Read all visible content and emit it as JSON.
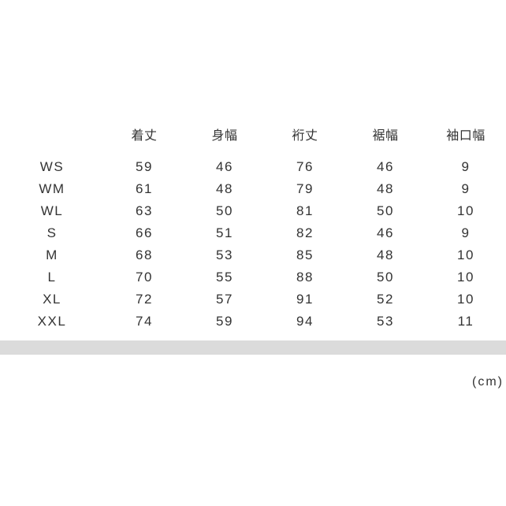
{
  "size_chart": {
    "unit_label": "(cm)",
    "columns": [
      "着丈",
      "身幅",
      "裄丈",
      "裾幅",
      "袖口幅"
    ],
    "rows": [
      {
        "size": "WS",
        "values": [
          "59",
          "46",
          "76",
          "46",
          "9"
        ]
      },
      {
        "size": "WM",
        "values": [
          "61",
          "48",
          "79",
          "48",
          "9"
        ]
      },
      {
        "size": "WL",
        "values": [
          "63",
          "50",
          "81",
          "50",
          "10"
        ]
      },
      {
        "size": "S",
        "values": [
          "66",
          "51",
          "82",
          "46",
          "9"
        ]
      },
      {
        "size": "M",
        "values": [
          "68",
          "53",
          "85",
          "48",
          "10"
        ]
      },
      {
        "size": "L",
        "values": [
          "70",
          "55",
          "88",
          "50",
          "10"
        ]
      },
      {
        "size": "XL",
        "values": [
          "72",
          "57",
          "91",
          "52",
          "10"
        ]
      },
      {
        "size": "XXL",
        "values": [
          "74",
          "59",
          "94",
          "53",
          "11"
        ]
      }
    ]
  },
  "colors": {
    "text": "#333333",
    "divider_bar": "#dbdbdb",
    "background": "#ffffff"
  }
}
